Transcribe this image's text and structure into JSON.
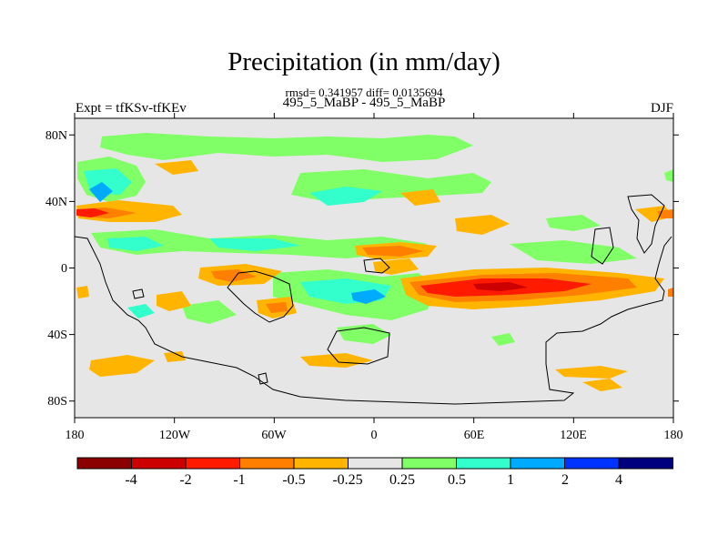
{
  "figure": {
    "title": "Precipitation (in mm/day)",
    "stats_line": "rmsd= 0.341957 diff= 0.0135694",
    "run_line": "495_5_MaBP - 495_5_MaBP",
    "left_label": "Expt = tfKSv-tfKEv",
    "right_label": "DJF"
  },
  "map": {
    "type": "filled-contour-map",
    "projection": "cylindrical-equidistant",
    "lon_range": [
      -180,
      180
    ],
    "lat_range": [
      -90,
      90
    ],
    "x_ticks": [
      "180",
      "120W",
      "60W",
      "0",
      "60E",
      "120E",
      "180"
    ],
    "y_ticks": [
      "80N",
      "40N",
      "0",
      "40S",
      "80S"
    ],
    "background_color": "#e6e6e6",
    "coastline_color": "#000000"
  },
  "colorbar": {
    "labels": [
      "-4",
      "-2",
      "-1",
      "-0.5",
      "-0.25",
      "0.25",
      "0.5",
      "1",
      "2",
      "4"
    ],
    "colors": [
      "#8b0000",
      "#cc0000",
      "#ff1a00",
      "#ff7f00",
      "#ffb400",
      "#e6e6e6",
      "#80ff66",
      "#33ffcc",
      "#00aaff",
      "#0033ff",
      "#00007f"
    ]
  }
}
